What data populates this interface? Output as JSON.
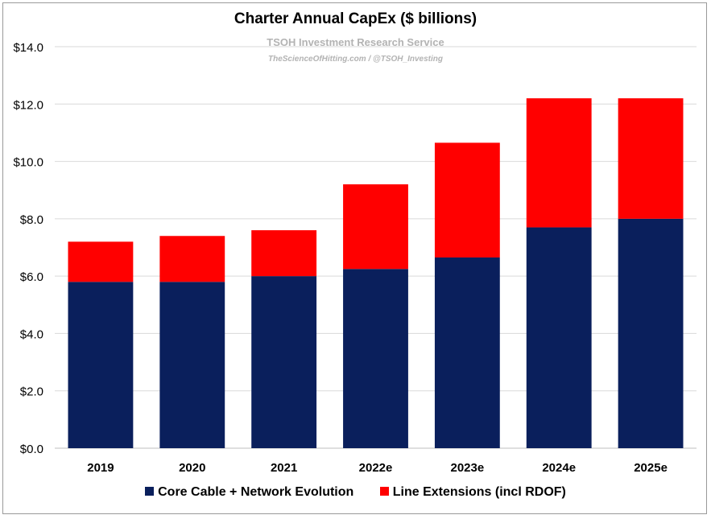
{
  "title": "Charter Annual CapEx ($ billions)",
  "watermark": {
    "line1": "TSOH Investment Research Service",
    "line2": "TheScienceOfHitting.com / @TSOH_Investing"
  },
  "colors": {
    "core": "#0a1f5c",
    "line_ext": "#ff0000",
    "grid": "#d9d9d9"
  },
  "chart_data": {
    "type": "bar",
    "stacked": true,
    "title": "Charter Annual CapEx ($ billions)",
    "categories": [
      "2019",
      "2020",
      "2021",
      "2022e",
      "2023e",
      "2024e",
      "2025e"
    ],
    "series": [
      {
        "name": "Core Cable + Network Evolution",
        "values": [
          5.8,
          5.8,
          6.0,
          6.25,
          6.65,
          7.7,
          8.0
        ]
      },
      {
        "name": "Line Extensions (incl RDOF)",
        "values": [
          1.4,
          1.6,
          1.6,
          2.95,
          4.0,
          4.5,
          4.2
        ]
      }
    ],
    "ylim": [
      0,
      14
    ],
    "yticks": [
      "$0.0",
      "$2.0",
      "$4.0",
      "$6.0",
      "$8.0",
      "$10.0",
      "$12.0",
      "$14.0"
    ],
    "grid": true,
    "legend": "bottom"
  }
}
